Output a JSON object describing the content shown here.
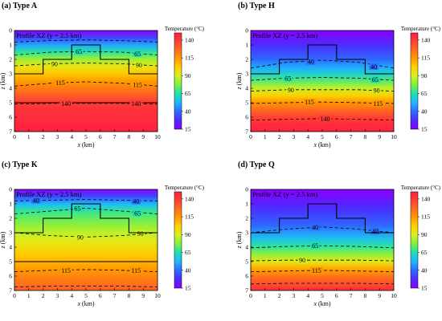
{
  "chart_data": [
    {
      "type": "heatmap",
      "panel_title": "(a) Type A",
      "profile_label": "Profile XZ (y = 2.5 km)",
      "xlabel_var": "x",
      "xlabel_unit": " (km)",
      "ylabel_var": "z",
      "ylabel_unit": "(km)",
      "x_ticks": [
        "0",
        "1",
        "2",
        "3",
        "4",
        "5",
        "6",
        "7",
        "8",
        "9",
        "10"
      ],
      "y_ticks": [
        "0",
        "1",
        "2",
        "3",
        "4",
        "5",
        "6",
        "7"
      ],
      "xlim": [
        0,
        10
      ],
      "ylim": [
        7,
        0
      ],
      "colorbar_title": "Temperature (°C)",
      "colorbar_ticks": [
        "15",
        "40",
        "65",
        "90",
        "115",
        "140"
      ],
      "colorbar_range": [
        15,
        150
      ],
      "colorscale": "rainbow",
      "contours": [
        {
          "label": "65",
          "x": [
            0,
            2.5,
            5,
            7.5,
            10
          ],
          "z": [
            1.7,
            1.5,
            1.45,
            1.5,
            1.7
          ],
          "label_pos": [
            [
              4.5,
              1.45
            ],
            [
              8.6,
              1.6
            ]
          ]
        },
        {
          "label": "90",
          "x": [
            0,
            2.5,
            5,
            7.5,
            10
          ],
          "z": [
            2.45,
            2.3,
            2.25,
            2.3,
            2.45
          ],
          "label_pos": [
            [
              2.8,
              2.3
            ],
            [
              8.7,
              2.4
            ]
          ]
        },
        {
          "label": "115",
          "x": [
            0,
            2.5,
            5,
            7.5,
            10
          ],
          "z": [
            3.85,
            3.65,
            3.55,
            3.65,
            3.85
          ],
          "label_pos": [
            [
              3.2,
              3.6
            ],
            [
              8.6,
              3.75
            ]
          ]
        },
        {
          "label": "140",
          "x": [
            0,
            2.5,
            5,
            7.5,
            10
          ],
          "z": [
            5.1,
            5.05,
            5.05,
            5.05,
            5.1
          ],
          "label_pos": [
            [
              3.6,
              5.05
            ],
            [
              8.5,
              5.05
            ]
          ]
        },
        {
          "label": "",
          "x": [
            0,
            2.5,
            5,
            7.5,
            10
          ],
          "z": [
            0.8,
            0.7,
            0.65,
            0.7,
            0.8
          ],
          "label_pos": []
        }
      ],
      "structure_outline": {
        "x": [
          0,
          2,
          2,
          4,
          4,
          6,
          6,
          8,
          8,
          10
        ],
        "z": [
          3,
          3,
          2,
          2,
          1,
          1,
          2,
          2,
          3,
          3
        ]
      },
      "layer_line_z": 5.0
    },
    {
      "type": "heatmap",
      "panel_title": "(b) Type H",
      "profile_label": "Profile XZ (y = 2.5 km)",
      "xlabel_var": "x",
      "xlabel_unit": " (km)",
      "ylabel_var": "z",
      "ylabel_unit": "(km)",
      "x_ticks": [
        "0",
        "1",
        "2",
        "3",
        "4",
        "5",
        "6",
        "7",
        "8",
        "9",
        "10"
      ],
      "y_ticks": [
        "0",
        "1",
        "2",
        "3",
        "4",
        "5",
        "6",
        "7"
      ],
      "xlim": [
        0,
        10
      ],
      "ylim": [
        7,
        0
      ],
      "colorbar_title": "Temperature (°C)",
      "colorbar_ticks": [
        "15",
        "40",
        "65",
        "90",
        "115",
        "140"
      ],
      "colorbar_range": [
        15,
        150
      ],
      "colorscale": "rainbow",
      "contours": [
        {
          "label": "40",
          "x": [
            0,
            2.5,
            5,
            7.5,
            10
          ],
          "z": [
            2.6,
            2.2,
            2.05,
            2.2,
            2.6
          ],
          "label_pos": [
            [
              4.2,
              2.15
            ],
            [
              8.6,
              2.5
            ]
          ]
        },
        {
          "label": "65",
          "x": [
            0,
            2.5,
            5,
            7.5,
            10
          ],
          "z": [
            3.45,
            3.3,
            3.25,
            3.3,
            3.45
          ],
          "label_pos": [
            [
              2.6,
              3.3
            ],
            [
              8.7,
              3.4
            ]
          ]
        },
        {
          "label": "90",
          "x": [
            0,
            2.5,
            5,
            7.5,
            10
          ],
          "z": [
            4.2,
            4.1,
            4.1,
            4.1,
            4.2
          ],
          "label_pos": [
            [
              2.8,
              4.1
            ],
            [
              8.8,
              4.15
            ]
          ]
        },
        {
          "label": "115",
          "x": [
            0,
            2.5,
            5,
            7.5,
            10
          ],
          "z": [
            5.05,
            5.0,
            4.95,
            5.0,
            5.05
          ],
          "label_pos": [
            [
              4.1,
              4.95
            ],
            [
              8.9,
              5.05
            ]
          ]
        },
        {
          "label": "140",
          "x": [
            0,
            2.5,
            5,
            7.5,
            10
          ],
          "z": [
            6.2,
            6.15,
            6.1,
            6.15,
            6.2
          ],
          "label_pos": [
            [
              5.2,
              6.1
            ]
          ]
        }
      ],
      "structure_outline": {
        "x": [
          0,
          2,
          2,
          4,
          4,
          6,
          6,
          8,
          8,
          10
        ],
        "z": [
          3,
          3,
          2,
          2,
          1,
          1,
          2,
          2,
          3,
          3
        ]
      },
      "layer_line_z": null
    },
    {
      "type": "heatmap",
      "panel_title": "(c) Type K",
      "profile_label": "Profile XZ (y = 2.5 km)",
      "xlabel_var": "x",
      "xlabel_unit": " (km)",
      "ylabel_var": "z",
      "ylabel_unit": "(km)",
      "x_ticks": [
        "0",
        "1",
        "2",
        "3",
        "4",
        "5",
        "6",
        "7",
        "8",
        "9",
        "10"
      ],
      "y_ticks": [
        "0",
        "1",
        "2",
        "3",
        "4",
        "5",
        "6",
        "7"
      ],
      "xlim": [
        0,
        10
      ],
      "ylim": [
        7,
        0
      ],
      "colorbar_title": "Temperature (°C)",
      "colorbar_ticks": [
        "15",
        "40",
        "65",
        "90",
        "115",
        "140"
      ],
      "colorbar_range": [
        15,
        150
      ],
      "colorscale": "rainbow",
      "contours": [
        {
          "label": "40",
          "x": [
            0,
            2.5,
            5,
            7.5,
            10
          ],
          "z": [
            0.8,
            0.75,
            0.7,
            0.75,
            0.8
          ],
          "label_pos": [
            [
              1.5,
              0.75
            ],
            [
              8.5,
              0.8
            ]
          ]
        },
        {
          "label": "65",
          "x": [
            0,
            2.5,
            5,
            7.5,
            10
          ],
          "z": [
            1.7,
            1.5,
            1.3,
            1.5,
            1.7
          ],
          "label_pos": [
            [
              4.4,
              1.3
            ],
            [
              8.6,
              1.65
            ]
          ]
        },
        {
          "label": "90",
          "x": [
            0,
            2.5,
            5,
            7.5,
            10
          ],
          "z": [
            3.0,
            3.2,
            3.3,
            3.2,
            3.0
          ],
          "label_pos": [
            [
              4.6,
              3.3
            ],
            [
              8.8,
              3.05
            ]
          ]
        },
        {
          "label": "115",
          "x": [
            0,
            2.5,
            5,
            7.5,
            10
          ],
          "z": [
            5.7,
            5.6,
            5.55,
            5.6,
            5.7
          ],
          "label_pos": [
            [
              3.6,
              5.6
            ],
            [
              8.5,
              5.6
            ]
          ]
        },
        {
          "label": "",
          "x": [
            0,
            2.5,
            5,
            7.5,
            10
          ],
          "z": [
            6.75,
            6.7,
            6.7,
            6.7,
            6.75
          ],
          "label_pos": []
        }
      ],
      "structure_outline": {
        "x": [
          0,
          2,
          2,
          4,
          4,
          6,
          6,
          8,
          8,
          10
        ],
        "z": [
          3,
          3,
          2,
          2,
          1,
          1,
          2,
          2,
          3,
          3
        ]
      },
      "layer_line_z": 5.0
    },
    {
      "type": "heatmap",
      "panel_title": "(d) Type Q",
      "profile_label": "Profile XZ (y = 2.5 km)",
      "xlabel_var": "x",
      "xlabel_unit": " (km)",
      "ylabel_var": "z",
      "ylabel_unit": "(km)",
      "x_ticks": [
        "0",
        "1",
        "2",
        "3",
        "4",
        "5",
        "6",
        "7",
        "8",
        "9",
        "10"
      ],
      "y_ticks": [
        "0",
        "1",
        "2",
        "3",
        "4",
        "5",
        "6",
        "7"
      ],
      "xlim": [
        0,
        10
      ],
      "ylim": [
        7,
        0
      ],
      "colorbar_title": "Temperature (°C)",
      "colorbar_ticks": [
        "15",
        "40",
        "65",
        "90",
        "115",
        "140"
      ],
      "colorbar_range": [
        15,
        150
      ],
      "colorscale": "rainbow",
      "contours": [
        {
          "label": "40",
          "x": [
            0,
            2.5,
            5,
            7.5,
            10
          ],
          "z": [
            3.0,
            2.75,
            2.6,
            2.75,
            3.0
          ],
          "label_pos": [
            [
              4.5,
              2.6
            ],
            [
              8.7,
              2.9
            ]
          ]
        },
        {
          "label": "65",
          "x": [
            0,
            2.5,
            5,
            7.5,
            10
          ],
          "z": [
            4.05,
            3.95,
            3.9,
            3.95,
            4.05
          ],
          "label_pos": [
            [
              4.5,
              3.9
            ]
          ]
        },
        {
          "label": "90",
          "x": [
            0,
            2.5,
            5,
            7.5,
            10
          ],
          "z": [
            4.95,
            4.9,
            4.9,
            4.9,
            4.95
          ],
          "label_pos": [
            [
              3.6,
              4.9
            ]
          ]
        },
        {
          "label": "115",
          "x": [
            0,
            2.5,
            5,
            7.5,
            10
          ],
          "z": [
            5.7,
            5.65,
            5.6,
            5.65,
            5.7
          ],
          "label_pos": [
            [
              4.6,
              5.6
            ]
          ]
        },
        {
          "label": "",
          "x": [
            0,
            2.5,
            5,
            7.5,
            10
          ],
          "z": [
            6.55,
            6.5,
            6.5,
            6.5,
            6.55
          ],
          "label_pos": []
        }
      ],
      "structure_outline": {
        "x": [
          0,
          2,
          2,
          4,
          4,
          6,
          6,
          8,
          8,
          10
        ],
        "z": [
          3,
          3,
          2,
          2,
          1,
          1,
          2,
          2,
          3,
          3
        ]
      },
      "layer_line_z": null
    }
  ]
}
